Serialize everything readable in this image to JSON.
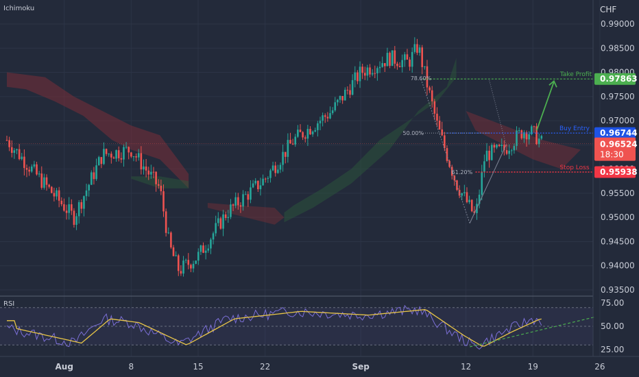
{
  "chart_title": "Ichimoku",
  "currency": "CHF",
  "indicator_label": "RSI",
  "colors": {
    "background": "#232a3a",
    "grid": "#2c3446",
    "up_candle": "#26a69a",
    "down_candle": "#ef5350",
    "take_profit": "#4caf50",
    "entry": "#2962ff",
    "stop": "#f23645",
    "rsi_line": "#7b6fd6",
    "rsi_ma": "#e8c547",
    "cloud_red": "#7a2e38",
    "cloud_green": "#2d5a3c"
  },
  "chart_data": [
    {
      "type": "candlestick",
      "y_axis": {
        "ticks": [
          "0.99000",
          "0.98500",
          "0.98000",
          "0.97500",
          "0.97000",
          "0.96500",
          "0.96000",
          "0.95500",
          "0.95000",
          "0.94500",
          "0.94000",
          "0.93500"
        ]
      },
      "x_axis": {
        "ticks": [
          "Aug",
          "8",
          "15",
          "22",
          "Sep",
          "12",
          "19",
          "26"
        ]
      },
      "price_path": [
        {
          "date": "Jul 26",
          "price": 0.966
        },
        {
          "date": "Jul 29",
          "price": 0.959
        },
        {
          "date": "Aug 2",
          "price": 0.95
        },
        {
          "date": "Aug 5",
          "price": 0.963
        },
        {
          "date": "Aug 8",
          "price": 0.964
        },
        {
          "date": "Aug 11",
          "price": 0.956
        },
        {
          "date": "Aug 12",
          "price": 0.944
        },
        {
          "date": "Aug 13",
          "price": 0.939
        },
        {
          "date": "Aug 15",
          "price": 0.942
        },
        {
          "date": "Aug 18",
          "price": 0.951
        },
        {
          "date": "Aug 22",
          "price": 0.958
        },
        {
          "date": "Aug 25",
          "price": 0.966
        },
        {
          "date": "Aug 29",
          "price": 0.972
        },
        {
          "date": "Sep 1",
          "price": 0.98
        },
        {
          "date": "Sep 4",
          "price": 0.983
        },
        {
          "date": "Sep 6",
          "price": 0.982
        },
        {
          "date": "Sep 7",
          "price": 0.9855
        },
        {
          "date": "Sep 8",
          "price": 0.977
        },
        {
          "date": "Sep 9",
          "price": 0.969
        },
        {
          "date": "Sep 11",
          "price": 0.957
        },
        {
          "date": "Sep 13",
          "price": 0.95
        },
        {
          "date": "Sep 14",
          "price": 0.963
        },
        {
          "date": "Sep 16",
          "price": 0.964
        },
        {
          "date": "Sep 18",
          "price": 0.968
        },
        {
          "date": "Sep 19",
          "price": 0.9675
        },
        {
          "date": "Sep 20",
          "price": 0.9652
        }
      ],
      "last_price": "0.96524",
      "countdown": "18:30",
      "levels": [
        {
          "name": "Take Profit",
          "value": "0.97863"
        },
        {
          "name": "Buy Entry",
          "value": "0.96744"
        },
        {
          "name": "Stop Loss",
          "value": "0.95938"
        }
      ],
      "fib_labels": [
        "78.60%",
        "50.00%",
        "61.20%"
      ]
    },
    {
      "type": "line",
      "title": "RSI",
      "y_axis": {
        "ticks": [
          "75.00",
          "50.00",
          "25.00"
        ]
      },
      "reference_lines": [
        70,
        50,
        30
      ],
      "rsi_path": [
        {
          "date": "Jul 26",
          "value": 48
        },
        {
          "date": "Aug 2",
          "value": 32
        },
        {
          "date": "Aug 5",
          "value": 58
        },
        {
          "date": "Aug 8",
          "value": 54
        },
        {
          "date": "Aug 13",
          "value": 30
        },
        {
          "date": "Aug 18",
          "value": 58
        },
        {
          "date": "Aug 25",
          "value": 66
        },
        {
          "date": "Sep 1",
          "value": 62
        },
        {
          "date": "Sep 7",
          "value": 68
        },
        {
          "date": "Sep 11",
          "value": 40
        },
        {
          "date": "Sep 13",
          "value": 28
        },
        {
          "date": "Sep 16",
          "value": 44
        },
        {
          "date": "Sep 19",
          "value": 58
        },
        {
          "date": "Sep 20",
          "value": 56
        }
      ]
    }
  ]
}
